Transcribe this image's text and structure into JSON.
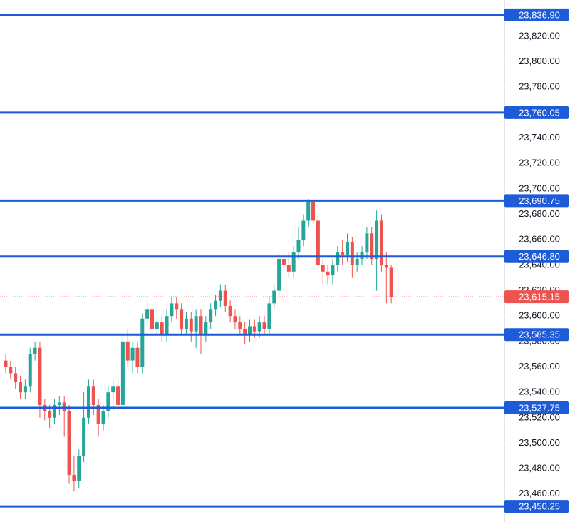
{
  "chart_data": {
    "type": "candlestick",
    "ylim": [
      23438,
      23848.6
    ],
    "yticks": [
      {
        "value": 23460,
        "label": "23,460.00"
      },
      {
        "value": 23480,
        "label": "23,480.00"
      },
      {
        "value": 23500,
        "label": "23,500.00"
      },
      {
        "value": 23520,
        "label": "23,520.00"
      },
      {
        "value": 23540,
        "label": "23,540.00"
      },
      {
        "value": 23560,
        "label": "23,560.00"
      },
      {
        "value": 23580,
        "label": "23,580.00"
      },
      {
        "value": 23600,
        "label": "23,600.00"
      },
      {
        "value": 23620,
        "label": "23,620.00"
      },
      {
        "value": 23640,
        "label": "23,640.00"
      },
      {
        "value": 23660,
        "label": "23,660.00"
      },
      {
        "value": 23680,
        "label": "23,680.00"
      },
      {
        "value": 23700,
        "label": "23,700.00"
      },
      {
        "value": 23720,
        "label": "23,720.00"
      },
      {
        "value": 23740,
        "label": "23,740.00"
      },
      {
        "value": 23760,
        "label": "23,760.00"
      },
      {
        "value": 23780,
        "label": "23,780.00"
      },
      {
        "value": 23800,
        "label": "23,800.00"
      },
      {
        "value": 23820,
        "label": "23,820.00"
      }
    ],
    "up_color": "#26a69a",
    "down_color": "#ef5350",
    "level_color": "#1e5bd8",
    "levels": [
      {
        "value": 23836.9,
        "label": "23,836.90"
      },
      {
        "value": 23760.05,
        "label": "23,760.05"
      },
      {
        "value": 23690.75,
        "label": "23,690.75"
      },
      {
        "value": 23646.8,
        "label": "23,646.80"
      },
      {
        "value": 23585.35,
        "label": "23,585.35"
      },
      {
        "value": 23527.75,
        "label": "23,527.75"
      },
      {
        "value": 23450.25,
        "label": "23,450.25"
      }
    ],
    "last_price": {
      "value": 23615.15,
      "label": "23,615.15"
    },
    "open": [
      23565,
      23560,
      23555,
      23548,
      23540,
      23545,
      23570,
      23575,
      23530,
      23525,
      23520,
      23530,
      23532,
      23525,
      23475,
      23470,
      23490,
      23520,
      23545,
      23530,
      23515,
      23525,
      23540,
      23545,
      23530,
      23580,
      23565,
      23575,
      23560,
      23598,
      23605,
      23590,
      23595,
      23585,
      23600,
      23610,
      23605,
      23590,
      23598,
      23588,
      23600,
      23585,
      23595,
      23605,
      23612,
      23620,
      23608,
      23600,
      23595,
      23590,
      23585,
      23592,
      23588,
      23595,
      23590,
      23610,
      23620,
      23645,
      23640,
      23635,
      23650,
      23660,
      23675,
      23690,
      23675,
      23640,
      23635,
      23632,
      23640,
      23650,
      23648,
      23658,
      23640,
      23645,
      23650,
      23665,
      23645,
      23675,
      23640,
      23638
    ],
    "high": [
      23570,
      23565,
      23560,
      23553,
      23550,
      23575,
      23580,
      23580,
      23535,
      23530,
      23535,
      23537,
      23537,
      23530,
      23490,
      23495,
      23540,
      23550,
      23550,
      23535,
      23530,
      23545,
      23550,
      23550,
      23585,
      23590,
      23580,
      23580,
      23602,
      23612,
      23610,
      23600,
      23600,
      23605,
      23615,
      23615,
      23610,
      23603,
      23603,
      23605,
      23605,
      23600,
      23610,
      23617,
      23625,
      23625,
      23613,
      23605,
      23600,
      23595,
      23597,
      23597,
      23600,
      23600,
      23615,
      23625,
      23650,
      23655,
      23650,
      23655,
      23670,
      23680,
      23692,
      23692,
      23680,
      23645,
      23640,
      23645,
      23655,
      23660,
      23665,
      23662,
      23650,
      23655,
      23670,
      23670,
      23683,
      23680,
      23650,
      23640
    ],
    "low": [
      23555,
      23550,
      23543,
      23535,
      23535,
      23540,
      23565,
      23520,
      23518,
      23512,
      23515,
      23522,
      23505,
      23468,
      23462,
      23465,
      23485,
      23515,
      23522,
      23505,
      23510,
      23520,
      23525,
      23522,
      23525,
      23560,
      23555,
      23555,
      23555,
      23593,
      23585,
      23585,
      23580,
      23580,
      23595,
      23598,
      23585,
      23585,
      23580,
      23575,
      23570,
      23580,
      23590,
      23600,
      23607,
      23603,
      23595,
      23590,
      23585,
      23578,
      23580,
      23583,
      23583,
      23585,
      23585,
      23605,
      23615,
      23630,
      23630,
      23630,
      23645,
      23655,
      23670,
      23670,
      23635,
      23625,
      23625,
      23625,
      23635,
      23640,
      23643,
      23630,
      23635,
      23640,
      23645,
      23640,
      23620,
      23635,
      23610,
      23610
    ],
    "close": [
      23560,
      23555,
      23548,
      23540,
      23545,
      23570,
      23575,
      23530,
      23525,
      23520,
      23530,
      23532,
      23525,
      23475,
      23470,
      23490,
      23520,
      23545,
      23530,
      23515,
      23525,
      23540,
      23545,
      23530,
      23580,
      23565,
      23575,
      23560,
      23598,
      23605,
      23590,
      23595,
      23585,
      23600,
      23610,
      23605,
      23590,
      23598,
      23588,
      23600,
      23585,
      23595,
      23605,
      23612,
      23620,
      23608,
      23600,
      23595,
      23590,
      23585,
      23592,
      23588,
      23595,
      23590,
      23610,
      23620,
      23645,
      23640,
      23635,
      23650,
      23660,
      23675,
      23690,
      23675,
      23640,
      23635,
      23632,
      23640,
      23650,
      23648,
      23658,
      23640,
      23645,
      23650,
      23665,
      23645,
      23675,
      23640,
      23638,
      23615
    ]
  }
}
